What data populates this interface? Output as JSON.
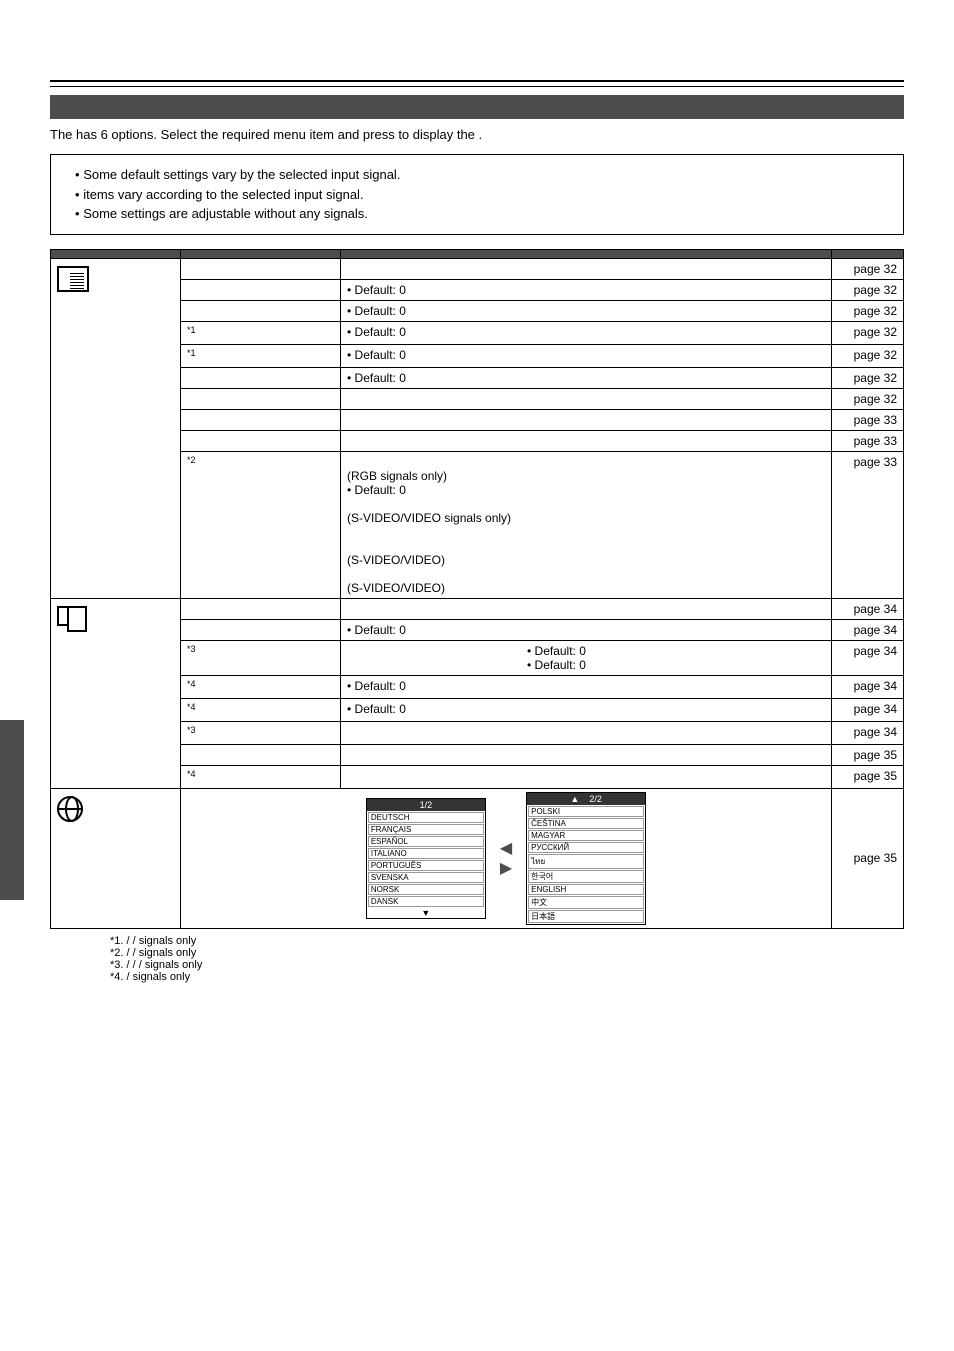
{
  "intro": {
    "prefix": "The ",
    "mid1": " has 6 options. Select the required menu item and press ",
    "mid2": " to display the ",
    "end": "."
  },
  "note": {
    "items": [
      "Some default settings vary by the selected input signal.",
      " items vary according to the selected input signal.",
      "Some settings are adjustable without any signals."
    ]
  },
  "headers": {
    "main": "",
    "sub": "",
    "opt": "",
    "page": ""
  },
  "rows": [
    {
      "cat": "pic",
      "sub": "",
      "opt": "",
      "page": "page 32"
    },
    {
      "cat": "pic",
      "sub": "",
      "opt": "• Default: 0",
      "page": "page 32"
    },
    {
      "cat": "pic",
      "sub": "",
      "opt": "• Default: 0",
      "page": "page 32"
    },
    {
      "cat": "pic",
      "sub": "",
      "sup": "*1",
      "opt": "• Default: 0",
      "page": "page 32"
    },
    {
      "cat": "pic",
      "sub": "",
      "sup": "*1",
      "opt": "• Default: 0",
      "page": "page 32"
    },
    {
      "cat": "pic",
      "sub": "",
      "opt": "• Default: 0",
      "page": "page 32"
    },
    {
      "cat": "pic",
      "sub": "",
      "opt": "",
      "page": "page 32"
    },
    {
      "cat": "pic",
      "sub": "",
      "opt": "",
      "page": "page 33"
    },
    {
      "cat": "pic",
      "sub": "",
      "opt": "",
      "page": "page 33"
    },
    {
      "cat": "pic",
      "sub": "",
      "sup": "*2",
      "optL1": "(RGB signals only)",
      "optL2": "• Default: 0",
      "optL3": "(S-VIDEO/VIDEO signals only)",
      "optL4": "(S-VIDEO/VIDEO)",
      "optL5": "(S-VIDEO/VIDEO)",
      "page": "page 33"
    }
  ],
  "posRows": [
    {
      "sub": "",
      "opt": "",
      "page": "page 34"
    },
    {
      "sub": "",
      "opt": "• Default: 0",
      "page": "page 34"
    },
    {
      "sub": "",
      "sup": "*3",
      "optR1": "• Default: 0",
      "optR2": "• Default: 0",
      "page": "page 34"
    },
    {
      "sub": "",
      "sup": "*4",
      "opt": "• Default: 0",
      "page": "page 34"
    },
    {
      "sub": "",
      "sup": "*4",
      "opt": "• Default: 0",
      "page": "page 34"
    },
    {
      "sub": "",
      "sup": "*3",
      "opt": "",
      "page": "page 34"
    },
    {
      "sub": "",
      "opt": "",
      "page": "page 35"
    },
    {
      "sub": "",
      "sup": "*4",
      "opt": "",
      "page": "page 35"
    }
  ],
  "lang": {
    "page": "page 35",
    "hdr1": "1/2",
    "hdr2": "2/2",
    "col1": [
      "DEUTSCH",
      "FRANÇAIS",
      "ESPAÑOL",
      "ITALIANO",
      "PORTUGUÊS",
      "SVENSKA",
      "NORSK",
      "DANSK"
    ],
    "col2": [
      "POLSKI",
      "ČEŠTINA",
      "MAGYAR",
      "РУССКИЙ",
      "ไทย",
      "한국어",
      "ENGLISH",
      "中文",
      "日本語"
    ],
    "down": "▼",
    "up": "▲"
  },
  "footnotes": [
    "*1.        /        /                signals only",
    "*2.        /        /            signals only",
    "*3.        /        /            /                signals only",
    "*4.            /                signals only"
  ],
  "bullet": "•"
}
